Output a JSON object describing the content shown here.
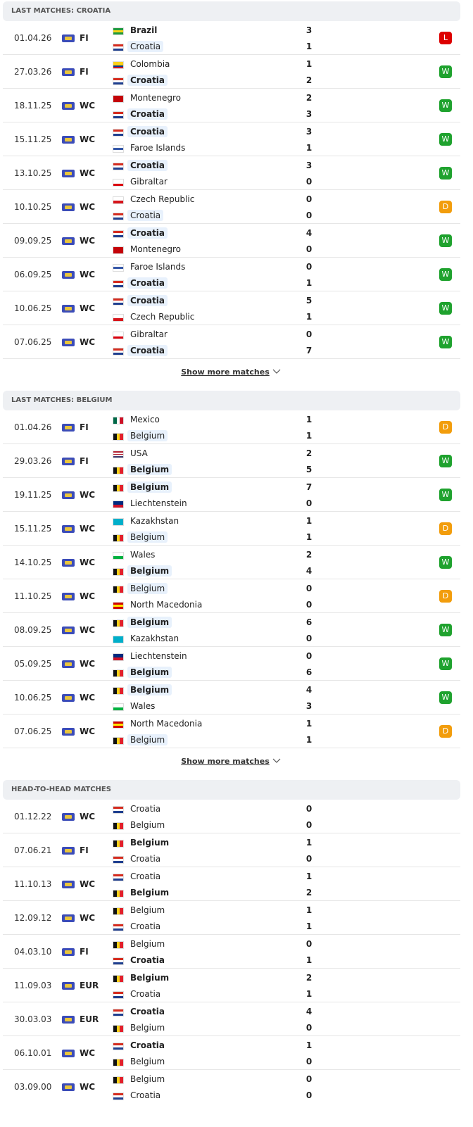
{
  "sections": [
    {
      "title": "LAST MATCHES: CROATIA",
      "show_more": "Show more matches",
      "matches": [
        {
          "date": "01.04.26",
          "comp": "FI",
          "home": "Brazil",
          "home_score": 3,
          "away": "Croatia",
          "away_score": 1,
          "result": "L",
          "highlight": "away"
        },
        {
          "date": "27.03.26",
          "comp": "FI",
          "home": "Colombia",
          "home_score": 1,
          "away": "Croatia",
          "away_score": 2,
          "result": "W",
          "highlight": "away"
        },
        {
          "date": "18.11.25",
          "comp": "WC",
          "home": "Montenegro",
          "home_score": 2,
          "away": "Croatia",
          "away_score": 3,
          "result": "W",
          "highlight": "away"
        },
        {
          "date": "15.11.25",
          "comp": "WC",
          "home": "Croatia",
          "home_score": 3,
          "away": "Faroe Islands",
          "away_score": 1,
          "result": "W",
          "highlight": "home"
        },
        {
          "date": "13.10.25",
          "comp": "WC",
          "home": "Croatia",
          "home_score": 3,
          "away": "Gibraltar",
          "away_score": 0,
          "result": "W",
          "highlight": "home"
        },
        {
          "date": "10.10.25",
          "comp": "WC",
          "home": "Czech Republic",
          "home_score": 0,
          "away": "Croatia",
          "away_score": 0,
          "result": "D",
          "highlight": "away"
        },
        {
          "date": "09.09.25",
          "comp": "WC",
          "home": "Croatia",
          "home_score": 4,
          "away": "Montenegro",
          "away_score": 0,
          "result": "W",
          "highlight": "home"
        },
        {
          "date": "06.09.25",
          "comp": "WC",
          "home": "Faroe Islands",
          "home_score": 0,
          "away": "Croatia",
          "away_score": 1,
          "result": "W",
          "highlight": "away"
        },
        {
          "date": "10.06.25",
          "comp": "WC",
          "home": "Croatia",
          "home_score": 5,
          "away": "Czech Republic",
          "away_score": 1,
          "result": "W",
          "highlight": "home"
        },
        {
          "date": "07.06.25",
          "comp": "WC",
          "home": "Gibraltar",
          "home_score": 0,
          "away": "Croatia",
          "away_score": 7,
          "result": "W",
          "highlight": "away"
        }
      ]
    },
    {
      "title": "LAST MATCHES: BELGIUM",
      "show_more": "Show more matches",
      "matches": [
        {
          "date": "01.04.26",
          "comp": "FI",
          "home": "Mexico",
          "home_score": 1,
          "away": "Belgium",
          "away_score": 1,
          "result": "D",
          "highlight": "away"
        },
        {
          "date": "29.03.26",
          "comp": "FI",
          "home": "USA",
          "home_score": 2,
          "away": "Belgium",
          "away_score": 5,
          "result": "W",
          "highlight": "away"
        },
        {
          "date": "19.11.25",
          "comp": "WC",
          "home": "Belgium",
          "home_score": 7,
          "away": "Liechtenstein",
          "away_score": 0,
          "result": "W",
          "highlight": "home"
        },
        {
          "date": "15.11.25",
          "comp": "WC",
          "home": "Kazakhstan",
          "home_score": 1,
          "away": "Belgium",
          "away_score": 1,
          "result": "D",
          "highlight": "away"
        },
        {
          "date": "14.10.25",
          "comp": "WC",
          "home": "Wales",
          "home_score": 2,
          "away": "Belgium",
          "away_score": 4,
          "result": "W",
          "highlight": "away"
        },
        {
          "date": "11.10.25",
          "comp": "WC",
          "home": "Belgium",
          "home_score": 0,
          "away": "North Macedonia",
          "away_score": 0,
          "result": "D",
          "highlight": "home"
        },
        {
          "date": "08.09.25",
          "comp": "WC",
          "home": "Belgium",
          "home_score": 6,
          "away": "Kazakhstan",
          "away_score": 0,
          "result": "W",
          "highlight": "home"
        },
        {
          "date": "05.09.25",
          "comp": "WC",
          "home": "Liechtenstein",
          "home_score": 0,
          "away": "Belgium",
          "away_score": 6,
          "result": "W",
          "highlight": "away"
        },
        {
          "date": "10.06.25",
          "comp": "WC",
          "home": "Belgium",
          "home_score": 4,
          "away": "Wales",
          "away_score": 3,
          "result": "W",
          "highlight": "home"
        },
        {
          "date": "07.06.25",
          "comp": "WC",
          "home": "North Macedonia",
          "home_score": 1,
          "away": "Belgium",
          "away_score": 1,
          "result": "D",
          "highlight": "away"
        }
      ]
    },
    {
      "title": "HEAD-TO-HEAD MATCHES",
      "matches": [
        {
          "date": "01.12.22",
          "comp": "WC",
          "home": "Croatia",
          "home_score": 0,
          "away": "Belgium",
          "away_score": 0
        },
        {
          "date": "07.06.21",
          "comp": "FI",
          "home": "Belgium",
          "home_score": 1,
          "away": "Croatia",
          "away_score": 0
        },
        {
          "date": "11.10.13",
          "comp": "WC",
          "home": "Croatia",
          "home_score": 1,
          "away": "Belgium",
          "away_score": 2
        },
        {
          "date": "12.09.12",
          "comp": "WC",
          "home": "Belgium",
          "home_score": 1,
          "away": "Croatia",
          "away_score": 1
        },
        {
          "date": "04.03.10",
          "comp": "FI",
          "home": "Belgium",
          "home_score": 0,
          "away": "Croatia",
          "away_score": 1
        },
        {
          "date": "11.09.03",
          "comp": "EUR",
          "home": "Belgium",
          "home_score": 2,
          "away": "Croatia",
          "away_score": 1
        },
        {
          "date": "30.03.03",
          "comp": "EUR",
          "home": "Croatia",
          "home_score": 4,
          "away": "Belgium",
          "away_score": 0
        },
        {
          "date": "06.10.01",
          "comp": "WC",
          "home": "Croatia",
          "home_score": 1,
          "away": "Belgium",
          "away_score": 0
        },
        {
          "date": "03.09.00",
          "comp": "WC",
          "home": "Belgium",
          "home_score": 0,
          "away": "Croatia",
          "away_score": 0
        }
      ]
    }
  ],
  "result_colors": {
    "W": "#1fa22e",
    "D": "#f29d0c",
    "L": "#dd0000"
  },
  "flags": {
    "Croatia": {
      "dir": "h",
      "colors": [
        "#d52b1e",
        "#ffffff",
        "#1f3f8f"
      ]
    },
    "Belgium": {
      "dir": "v",
      "colors": [
        "#111111",
        "#f6d21a",
        "#e3202a"
      ]
    },
    "Brazil": {
      "dir": "h",
      "colors": [
        "#1f9a3c",
        "#f7d417",
        "#1f9a3c"
      ]
    },
    "Colombia": {
      "dir": "h",
      "colors": [
        "#fcd116",
        "#fcd116",
        "#003893",
        "#ce1126"
      ]
    },
    "Montenegro": {
      "dir": "h",
      "colors": [
        "#c40308",
        "#c40308",
        "#c40308"
      ]
    },
    "Faroe Islands": {
      "dir": "h",
      "colors": [
        "#ffffff",
        "#3557a8",
        "#ffffff"
      ]
    },
    "Gibraltar": {
      "dir": "h",
      "colors": [
        "#ffffff",
        "#ffffff",
        "#da000c"
      ]
    },
    "Czech Republic": {
      "dir": "h",
      "colors": [
        "#ffffff",
        "#d7141a"
      ]
    },
    "Mexico": {
      "dir": "v",
      "colors": [
        "#006847",
        "#ffffff",
        "#ce1126"
      ]
    },
    "USA": {
      "dir": "h",
      "colors": [
        "#b22234",
        "#ffffff",
        "#b22234",
        "#ffffff",
        "#3c3b6e"
      ]
    },
    "Liechtenstein": {
      "dir": "h",
      "colors": [
        "#002b7f",
        "#ce1126"
      ]
    },
    "Kazakhstan": {
      "dir": "h",
      "colors": [
        "#00afca",
        "#00afca"
      ]
    },
    "Wales": {
      "dir": "h",
      "colors": [
        "#ffffff",
        "#00b140"
      ]
    },
    "North Macedonia": {
      "dir": "h",
      "colors": [
        "#d20000",
        "#ffe600",
        "#d20000"
      ]
    }
  }
}
